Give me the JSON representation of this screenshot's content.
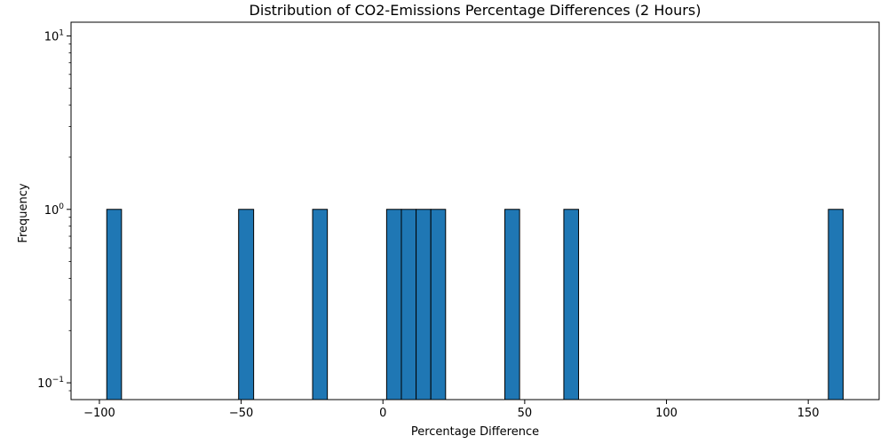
{
  "chart_data": {
    "type": "bar",
    "subtype": "histogram",
    "title": "Distribution of CO2-Emissions Percentage Differences (2 Hours)",
    "xlabel": "Percentage Difference",
    "ylabel": "Frequency",
    "xlim": [
      -110,
      175
    ],
    "ylim": [
      0.08,
      12
    ],
    "yscale": "log",
    "grid": false,
    "bar_color": "#1f77b4",
    "edge_color": "#000000",
    "x_ticks": [
      {
        "value": -100,
        "label": "−100"
      },
      {
        "value": -50,
        "label": "−50"
      },
      {
        "value": 0,
        "label": "0"
      },
      {
        "value": 50,
        "label": "50"
      },
      {
        "value": 100,
        "label": "100"
      },
      {
        "value": 150,
        "label": "150"
      }
    ],
    "y_ticks": [
      {
        "value": 0.1,
        "base": "10",
        "exp": "−1"
      },
      {
        "value": 1,
        "base": "10",
        "exp": "0"
      },
      {
        "value": 10,
        "base": "10",
        "exp": "1"
      }
    ],
    "bins": [
      {
        "x0": -97.4,
        "x1": -92.2,
        "count": 1
      },
      {
        "x0": -50.9,
        "x1": -45.6,
        "count": 1
      },
      {
        "x0": -24.8,
        "x1": -19.6,
        "count": 1
      },
      {
        "x0": 1.3,
        "x1": 6.5,
        "count": 1
      },
      {
        "x0": 6.5,
        "x1": 11.7,
        "count": 1
      },
      {
        "x0": 11.7,
        "x1": 16.9,
        "count": 1
      },
      {
        "x0": 16.9,
        "x1": 22.1,
        "count": 1
      },
      {
        "x0": 43.0,
        "x1": 48.2,
        "count": 1
      },
      {
        "x0": 63.8,
        "x1": 69.0,
        "count": 1
      },
      {
        "x0": 157.1,
        "x1": 162.3,
        "count": 1
      }
    ]
  }
}
